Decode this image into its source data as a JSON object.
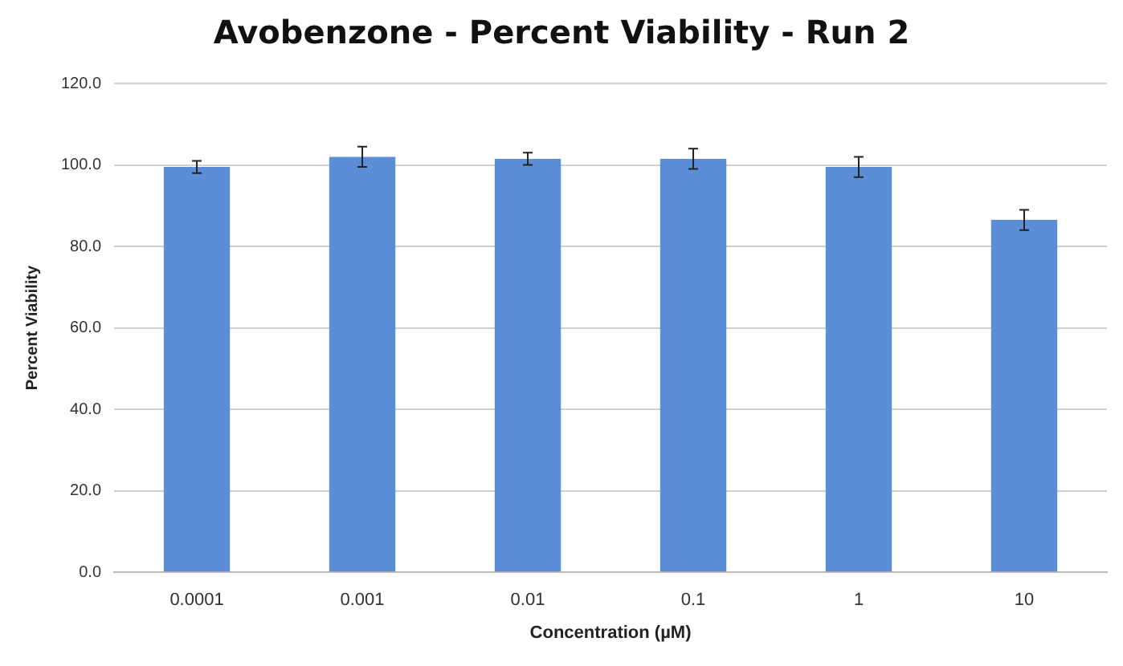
{
  "chart_data": {
    "type": "bar",
    "title": "Avobenzone - Percent Viability - Run 2",
    "xlabel": "Concentration (µM)",
    "ylabel": "Percent Viability",
    "categories": [
      "0.0001",
      "0.001",
      "0.01",
      "0.1",
      "1",
      "10"
    ],
    "values": [
      99.5,
      102,
      101.5,
      101.5,
      99.5,
      86.5
    ],
    "errors": [
      1.5,
      2.5,
      1.5,
      2.5,
      2.5,
      2.5
    ],
    "color": "#5b8ed6",
    "ylim": [
      0,
      120
    ],
    "yticks": [
      {
        "value": 0,
        "label": "0.0"
      },
      {
        "value": 20,
        "label": "20.0"
      },
      {
        "value": 40,
        "label": "40.0"
      },
      {
        "value": 60,
        "label": "60.0"
      },
      {
        "value": 80,
        "label": "80.0"
      },
      {
        "value": 100,
        "label": "100.0"
      },
      {
        "value": 120,
        "label": "120.0"
      }
    ],
    "grid": "y",
    "legend": false
  }
}
